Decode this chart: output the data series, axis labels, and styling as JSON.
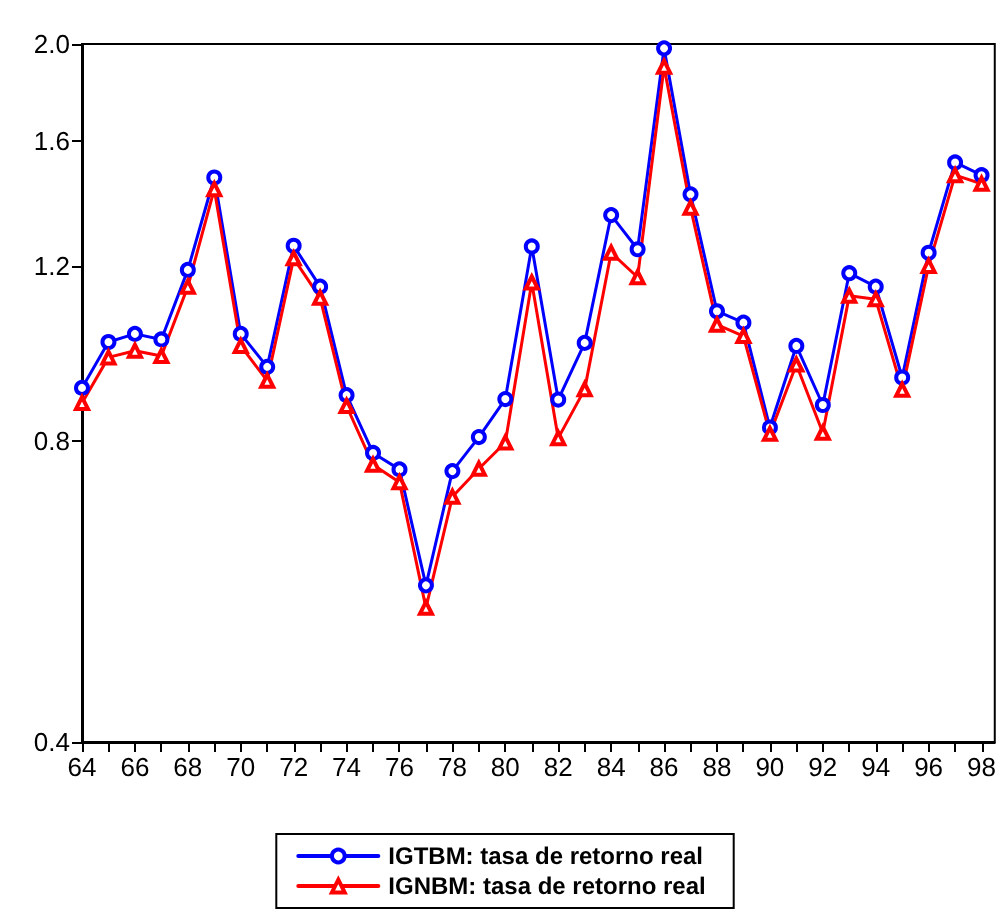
{
  "chart_data": {
    "type": "line",
    "log": "y",
    "legend": "bottom",
    "grid": false,
    "x": [
      64,
      65,
      66,
      67,
      68,
      69,
      70,
      71,
      72,
      73,
      74,
      75,
      76,
      77,
      78,
      79,
      80,
      81,
      82,
      83,
      84,
      85,
      86,
      87,
      88,
      89,
      90,
      91,
      92,
      93,
      94,
      95,
      96,
      97,
      98
    ],
    "xlim": [
      64,
      98.5
    ],
    "xticks": [
      64,
      {
        "value": 65,
        "label": null
      },
      66,
      {
        "value": 67,
        "label": null
      },
      68,
      {
        "value": 69,
        "label": null
      },
      70,
      {
        "value": 71,
        "label": null
      },
      72,
      {
        "value": 73,
        "label": null
      },
      74,
      {
        "value": 75,
        "label": null
      },
      76,
      {
        "value": 77,
        "label": null
      },
      78,
      {
        "value": 79,
        "label": null
      },
      80,
      {
        "value": 81,
        "label": null
      },
      82,
      {
        "value": 83,
        "label": null
      },
      84,
      {
        "value": 85,
        "label": null
      },
      86,
      {
        "value": 87,
        "label": null
      },
      88,
      {
        "value": 89,
        "label": null
      },
      90,
      {
        "value": 91,
        "label": null
      },
      92,
      {
        "value": 93,
        "label": null
      },
      94,
      {
        "value": 95,
        "label": null
      },
      96,
      {
        "value": 97,
        "label": null
      },
      98
    ],
    "ylim": [
      0.4,
      2.0
    ],
    "yticks": [
      0.4,
      0.8,
      1.2,
      1.6,
      {
        "value": 2,
        "label": "2.0"
      }
    ],
    "series": [
      {
        "name": "IGTBM: tasa de retorno real",
        "color": "#0000ff",
        "marker": "circle",
        "values": [
          0.905,
          1.006,
          1.025,
          1.012,
          1.188,
          1.47,
          1.025,
          0.95,
          1.256,
          1.143,
          0.89,
          0.779,
          0.75,
          0.574,
          0.747,
          0.808,
          0.882,
          1.254,
          0.881,
          1.004,
          1.348,
          1.246,
          1.98,
          1.414,
          1.08,
          1.052,
          0.826,
          0.997,
          0.87,
          1.179,
          1.143,
          0.927,
          1.236,
          1.522,
          1.478
        ]
      },
      {
        "name": "IGNBM: tasa de retorno real",
        "color": "#ff0000",
        "marker": "triangle",
        "values": [
          0.874,
          0.971,
          0.986,
          0.974,
          1.143,
          1.431,
          0.997,
          0.92,
          1.22,
          1.114,
          0.868,
          0.758,
          0.728,
          0.545,
          0.704,
          0.751,
          0.798,
          1.154,
          0.806,
          0.902,
          1.236,
          1.168,
          1.898,
          1.371,
          1.047,
          1.02,
          0.814,
          0.955,
          0.816,
          1.119,
          1.11,
          0.901,
          1.199,
          1.478,
          1.449
        ]
      }
    ]
  }
}
